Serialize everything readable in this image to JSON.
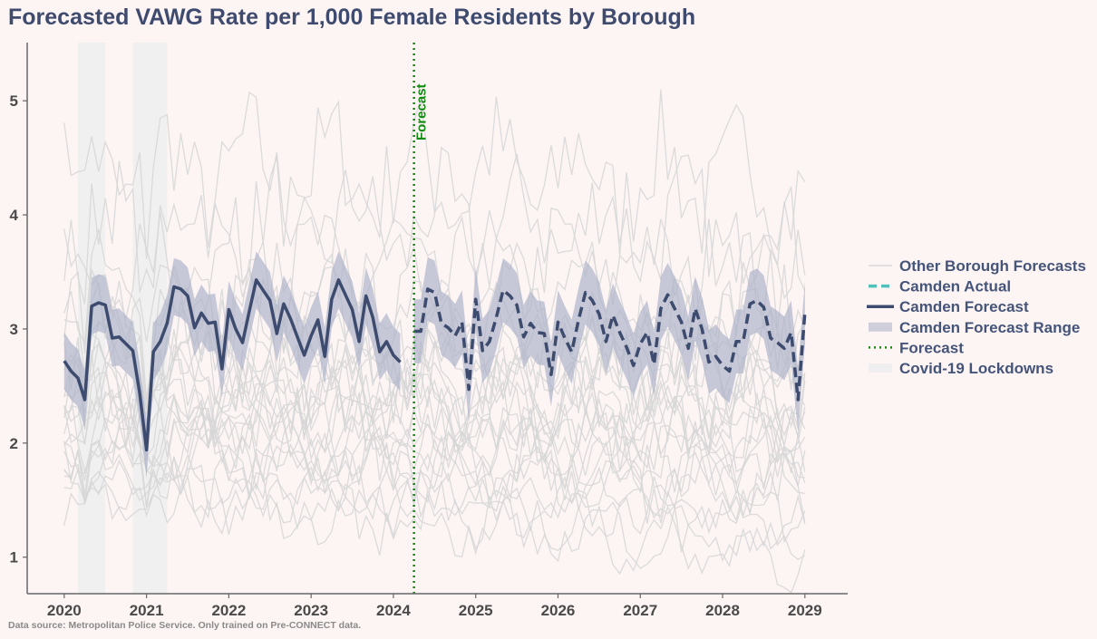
{
  "chart_data": {
    "type": "line",
    "title": "Forecasted VAWG Rate per 1,000 Female Residents by Borough",
    "source_note": "Data source: Metropolitan Police Service. Only trained on Pre-CONNECT data.",
    "xlabel": "",
    "ylabel": "",
    "xlim": [
      2019.55,
      2029.52
    ],
    "ylim": [
      0.68,
      5.51
    ],
    "x_ticks": [
      "2020",
      "2021",
      "2022",
      "2023",
      "2024",
      "2025",
      "2026",
      "2027",
      "2028",
      "2029"
    ],
    "y_ticks": [
      "1",
      "2",
      "3",
      "4",
      "5"
    ],
    "grid": false,
    "legend_position": "right",
    "legend": [
      {
        "label": "Other Borough Forecasts",
        "style": "thin-grey-line"
      },
      {
        "label": "Camden Actual",
        "style": "teal-dashed-line"
      },
      {
        "label": "Camden Forecast",
        "style": "navy-solid-line"
      },
      {
        "label": "Camden Forecast Range",
        "style": "band"
      },
      {
        "label": "Forecast",
        "style": "green-dotted-line"
      },
      {
        "label": "Covid-19 Lockdowns",
        "style": "light-band"
      }
    ],
    "colors": {
      "camden": "#3d4b6e",
      "camden_range": "#aab0c8",
      "camden_actual": "#4fc1b9",
      "other": "#d6d6d6",
      "forecast_marker": "#118a11",
      "lockdown": "#efefef"
    },
    "forecast_marker": {
      "x": "2024-04",
      "label": "Forecast"
    },
    "lockdowns": [
      {
        "start": "2020-03",
        "end": "2020-06"
      },
      {
        "start": "2020-11",
        "end": "2020-12"
      },
      {
        "start": "2021-01",
        "end": "2021-03"
      }
    ],
    "camden_fitted": {
      "name": "Camden Forecast",
      "range_halfwidth": 0.25,
      "x": [
        "2020-01",
        "2020-02",
        "2020-03",
        "2020-04",
        "2020-05",
        "2020-06",
        "2020-07",
        "2020-08",
        "2020-09",
        "2020-10",
        "2020-11",
        "2020-12",
        "2021-01",
        "2021-02",
        "2021-03",
        "2021-04",
        "2021-05",
        "2021-06",
        "2021-07",
        "2021-08",
        "2021-09",
        "2021-10",
        "2021-11",
        "2021-12",
        "2022-01",
        "2022-02",
        "2022-03",
        "2022-04",
        "2022-05",
        "2022-06",
        "2022-07",
        "2022-08",
        "2022-09",
        "2022-10",
        "2022-11",
        "2022-12",
        "2023-01",
        "2023-02",
        "2023-03",
        "2023-04",
        "2023-05",
        "2023-06",
        "2023-07",
        "2023-08",
        "2023-09",
        "2023-10",
        "2023-11",
        "2023-12",
        "2024-01",
        "2024-02"
      ],
      "y": [
        2.72,
        2.63,
        2.57,
        2.38,
        3.2,
        3.23,
        3.21,
        2.92,
        2.93,
        2.87,
        2.81,
        2.44,
        1.94,
        2.8,
        2.89,
        3.05,
        3.37,
        3.35,
        3.29,
        3.01,
        3.14,
        3.05,
        3.06,
        2.65,
        3.17,
        3.0,
        2.88,
        3.16,
        3.43,
        3.34,
        3.25,
        2.96,
        3.22,
        3.09,
        2.93,
        2.77,
        2.94,
        3.08,
        2.76,
        3.26,
        3.43,
        3.3,
        3.17,
        2.89,
        3.29,
        3.1,
        2.8,
        2.89,
        2.77,
        2.71
      ]
    },
    "camden_future": {
      "range_halfwidth": 0.28,
      "x": [
        "2024-04",
        "2024-05",
        "2024-06",
        "2024-07",
        "2024-08",
        "2024-09",
        "2024-10",
        "2024-11",
        "2024-12",
        "2025-01",
        "2025-02",
        "2025-03",
        "2025-04",
        "2025-05",
        "2025-06",
        "2025-07",
        "2025-08",
        "2025-09",
        "2025-10",
        "2025-11",
        "2025-12",
        "2026-01",
        "2026-02",
        "2026-03",
        "2026-04",
        "2026-05",
        "2026-06",
        "2026-07",
        "2026-08",
        "2026-09",
        "2026-10",
        "2026-11",
        "2026-12",
        "2027-01",
        "2027-02",
        "2027-03",
        "2027-04",
        "2027-05",
        "2027-06",
        "2027-07",
        "2027-08",
        "2027-09",
        "2027-10",
        "2027-11",
        "2027-12",
        "2028-01",
        "2028-02",
        "2028-03",
        "2028-04",
        "2028-05",
        "2028-06",
        "2028-07",
        "2028-08",
        "2028-09",
        "2028-10",
        "2028-11",
        "2028-12",
        "2029-01"
      ],
      "y": [
        2.98,
        2.98,
        3.35,
        3.32,
        3.05,
        3.01,
        2.94,
        3.06,
        2.47,
        3.26,
        2.81,
        2.89,
        3.1,
        3.34,
        3.29,
        3.21,
        2.93,
        3.05,
        2.97,
        2.96,
        2.6,
        3.06,
        2.92,
        2.8,
        3.08,
        3.32,
        3.25,
        3.13,
        2.89,
        3.12,
        2.97,
        2.84,
        2.68,
        2.87,
        2.97,
        2.69,
        3.18,
        3.3,
        3.18,
        3.06,
        2.83,
        3.18,
        3.0,
        2.71,
        2.76,
        2.68,
        2.63,
        2.89,
        2.89,
        3.22,
        3.25,
        3.19,
        2.92,
        2.88,
        2.83,
        2.97,
        2.38,
        3.14
      ]
    },
    "other_boroughs_levels": [
      [
        4.4,
        4.3
      ],
      [
        3.9,
        3.9
      ],
      [
        3.5,
        3.6
      ],
      [
        3.3,
        3.3
      ],
      [
        3.1,
        3.0
      ],
      [
        3.0,
        2.9
      ],
      [
        2.9,
        2.8
      ],
      [
        2.8,
        2.7
      ],
      [
        2.7,
        2.6
      ],
      [
        2.6,
        2.5
      ],
      [
        2.55,
        2.4
      ],
      [
        2.5,
        2.3
      ],
      [
        2.4,
        2.2
      ],
      [
        2.35,
        2.2
      ],
      [
        2.3,
        2.1
      ],
      [
        2.25,
        2.0
      ],
      [
        2.2,
        1.95
      ],
      [
        2.15,
        1.9
      ],
      [
        2.1,
        1.8
      ],
      [
        2.0,
        1.7
      ],
      [
        1.95,
        1.6
      ],
      [
        1.9,
        1.5
      ],
      [
        1.8,
        1.4
      ],
      [
        1.7,
        1.3
      ],
      [
        1.6,
        1.1
      ],
      [
        1.6,
        1.0
      ]
    ]
  }
}
